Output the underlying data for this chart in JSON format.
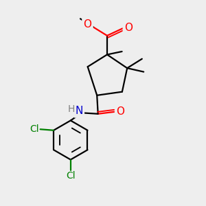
{
  "bg_color": "#eeeeee",
  "bond_color": "#000000",
  "bond_width": 1.6,
  "O_color": "#ff0000",
  "N_color": "#0000cd",
  "Cl_color": "#008000",
  "H_color": "#808080",
  "font_size": 10,
  "figsize": [
    3.0,
    3.0
  ],
  "dpi": 100,
  "xlim": [
    0,
    10
  ],
  "ylim": [
    0,
    10
  ]
}
